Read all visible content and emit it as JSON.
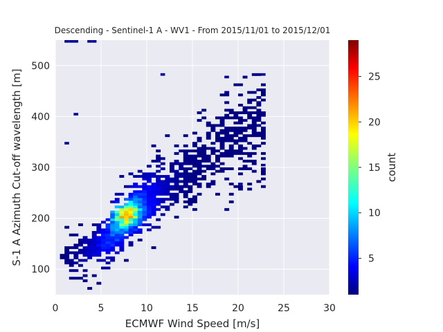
{
  "chart_data": {
    "type": "heatmap",
    "title": "Descending - Sentinel-1 A - WV1 - From 2015/11/01 to 2015/12/01",
    "xlabel": "ECMWF Wind Speed [m/s]",
    "ylabel": "S-1 A Azimuth Cut-off wavelength [m]",
    "xlim": [
      0,
      30
    ],
    "ylim": [
      50,
      550
    ],
    "xticks": [
      0,
      5,
      10,
      15,
      20,
      25,
      30
    ],
    "yticks": [
      100,
      200,
      300,
      400,
      500
    ],
    "grid": true,
    "colormap": "jet",
    "colorbar": {
      "label": "count",
      "range": [
        1,
        29
      ],
      "ticks": [
        5,
        10,
        15,
        20,
        25
      ]
    },
    "bin_width_x": 0.5,
    "bin_height_y": 5,
    "density": {
      "trend_points": [
        [
          1,
          115
        ],
        [
          3,
          130
        ],
        [
          5,
          150
        ],
        [
          7,
          185
        ],
        [
          8,
          210
        ],
        [
          10,
          235
        ],
        [
          12,
          260
        ],
        [
          15,
          300
        ],
        [
          18,
          340
        ],
        [
          22,
          390
        ]
      ],
      "peak_x": 7.5,
      "peak_y": 205,
      "peak_count": 29
    }
  }
}
